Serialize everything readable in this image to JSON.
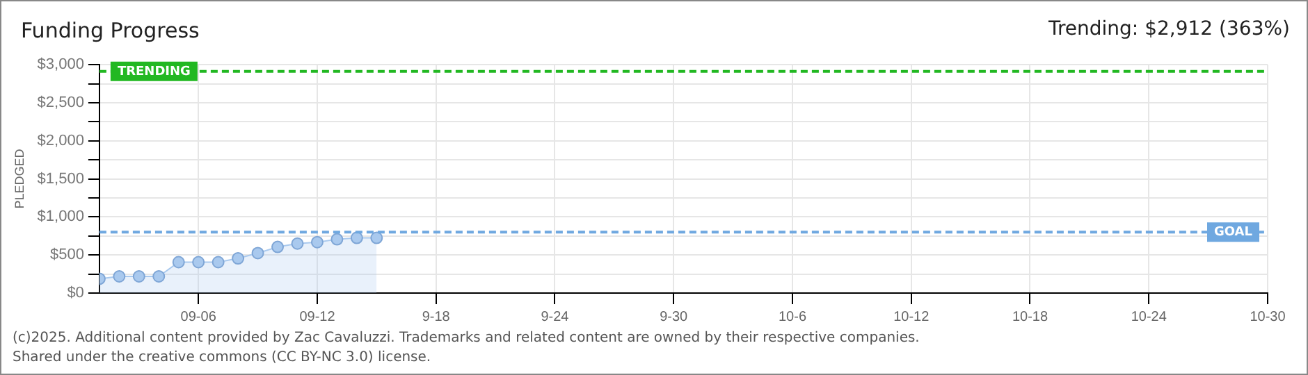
{
  "chart_data": {
    "type": "area",
    "title": "Funding Progress",
    "ylabel": "PLEDGED",
    "annotations": [
      "Trending: $2,912 (363%)",
      "(c)2025. Additional content provided by Zac Cavaluzzi. Trademarks and related content are owned by their respective companies.",
      "Shared under the creative commons (CC BY-NC 3.0) license."
    ],
    "x": [
      "--09-01",
      "--09-02",
      "--09-03",
      "--09-04",
      "--09-05",
      "--09-06",
      "--09-07",
      "--09-08",
      "--09-09",
      "--09-10",
      "--09-11",
      "--09-12",
      "--09-13",
      "--09-14",
      "--09-15"
    ],
    "series": [
      {
        "color": "#a9c9ee",
        "values": [
          188,
          219,
          219,
          219,
          406,
          406,
          406,
          456,
          525,
          606,
          650,
          669,
          706,
          725,
          725
        ]
      }
    ],
    "xlim": [
      "--09-01",
      "--10-30"
    ],
    "xticks": [
      {
        "value": "--09-06",
        "label": "09-06"
      },
      {
        "value": "--09-12",
        "label": "09-12"
      },
      {
        "value": "--09-18",
        "label": "9-18"
      },
      {
        "value": "--09-24",
        "label": "9-24"
      },
      {
        "value": "--09-30",
        "label": "9-30"
      },
      {
        "value": "--10-06",
        "label": "10-6"
      },
      {
        "value": "--10-12",
        "label": "10-12"
      },
      {
        "value": "--10-18",
        "label": "10-18"
      },
      {
        "value": "--10-24",
        "label": "10-24"
      },
      {
        "value": "--10-30",
        "label": "10-30"
      }
    ],
    "ylim": [
      0,
      3000
    ],
    "yticks": [
      {
        "value": 0,
        "label": "$0"
      },
      {
        "value": 250,
        "label": null
      },
      {
        "value": 500,
        "label": "$500"
      },
      {
        "value": 750,
        "label": null
      },
      {
        "value": 1000,
        "label": "$1,000"
      },
      {
        "value": 1250,
        "label": null
      },
      {
        "value": 1500,
        "label": "$1,500"
      },
      {
        "value": 1750,
        "label": null
      },
      {
        "value": 2000,
        "label": "$2,000"
      },
      {
        "value": 2250,
        "label": null
      },
      {
        "value": 2500,
        "label": "$2,500"
      },
      {
        "value": 2750,
        "label": null
      },
      {
        "value": 3000,
        "label": "$3,000"
      }
    ],
    "ref_lines": [
      {
        "axis": "y",
        "value": 2912,
        "label": "TRENDING",
        "color": "#22b822",
        "line_style": "dashed"
      },
      {
        "axis": "y",
        "value": 800,
        "label": "GOAL",
        "color": "#6fa8e0",
        "line_style": "dashed"
      }
    ],
    "grid": true,
    "marker": "circle",
    "line_style": "solid",
    "legend": false
  }
}
